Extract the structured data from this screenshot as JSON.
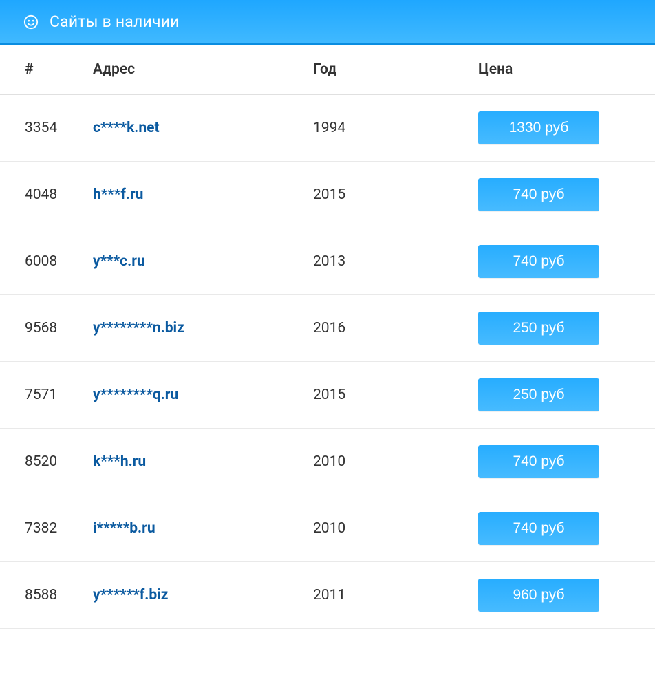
{
  "header": {
    "title": "Сайты в наличии"
  },
  "columns": {
    "id": "#",
    "address": "Адрес",
    "year": "Год",
    "price": "Цена"
  },
  "colors": {
    "header_gradient_top": "#1fa7ff",
    "header_gradient_bottom": "#40b9ff",
    "header_border": "#0a8de0",
    "row_border": "#e9e9e9",
    "address_link": "#0b5aa0",
    "text": "#333333",
    "button_gradient_top": "#27adff",
    "button_gradient_bottom": "#47bbff",
    "button_text": "#ffffff"
  },
  "rows": [
    {
      "id": "3354",
      "address": "c****k.net",
      "year": "1994",
      "price": "1330 руб"
    },
    {
      "id": "4048",
      "address": "h***f.ru",
      "year": "2015",
      "price": "740 руб"
    },
    {
      "id": "6008",
      "address": "y***c.ru",
      "year": "2013",
      "price": "740 руб"
    },
    {
      "id": "9568",
      "address": "y********n.biz",
      "year": "2016",
      "price": "250 руб"
    },
    {
      "id": "7571",
      "address": "y********q.ru",
      "year": "2015",
      "price": "250 руб"
    },
    {
      "id": "8520",
      "address": "k***h.ru",
      "year": "2010",
      "price": "740 руб"
    },
    {
      "id": "7382",
      "address": "i*****b.ru",
      "year": "2010",
      "price": "740 руб"
    },
    {
      "id": "8588",
      "address": "y******f.biz",
      "year": "2011",
      "price": "960 руб"
    }
  ]
}
